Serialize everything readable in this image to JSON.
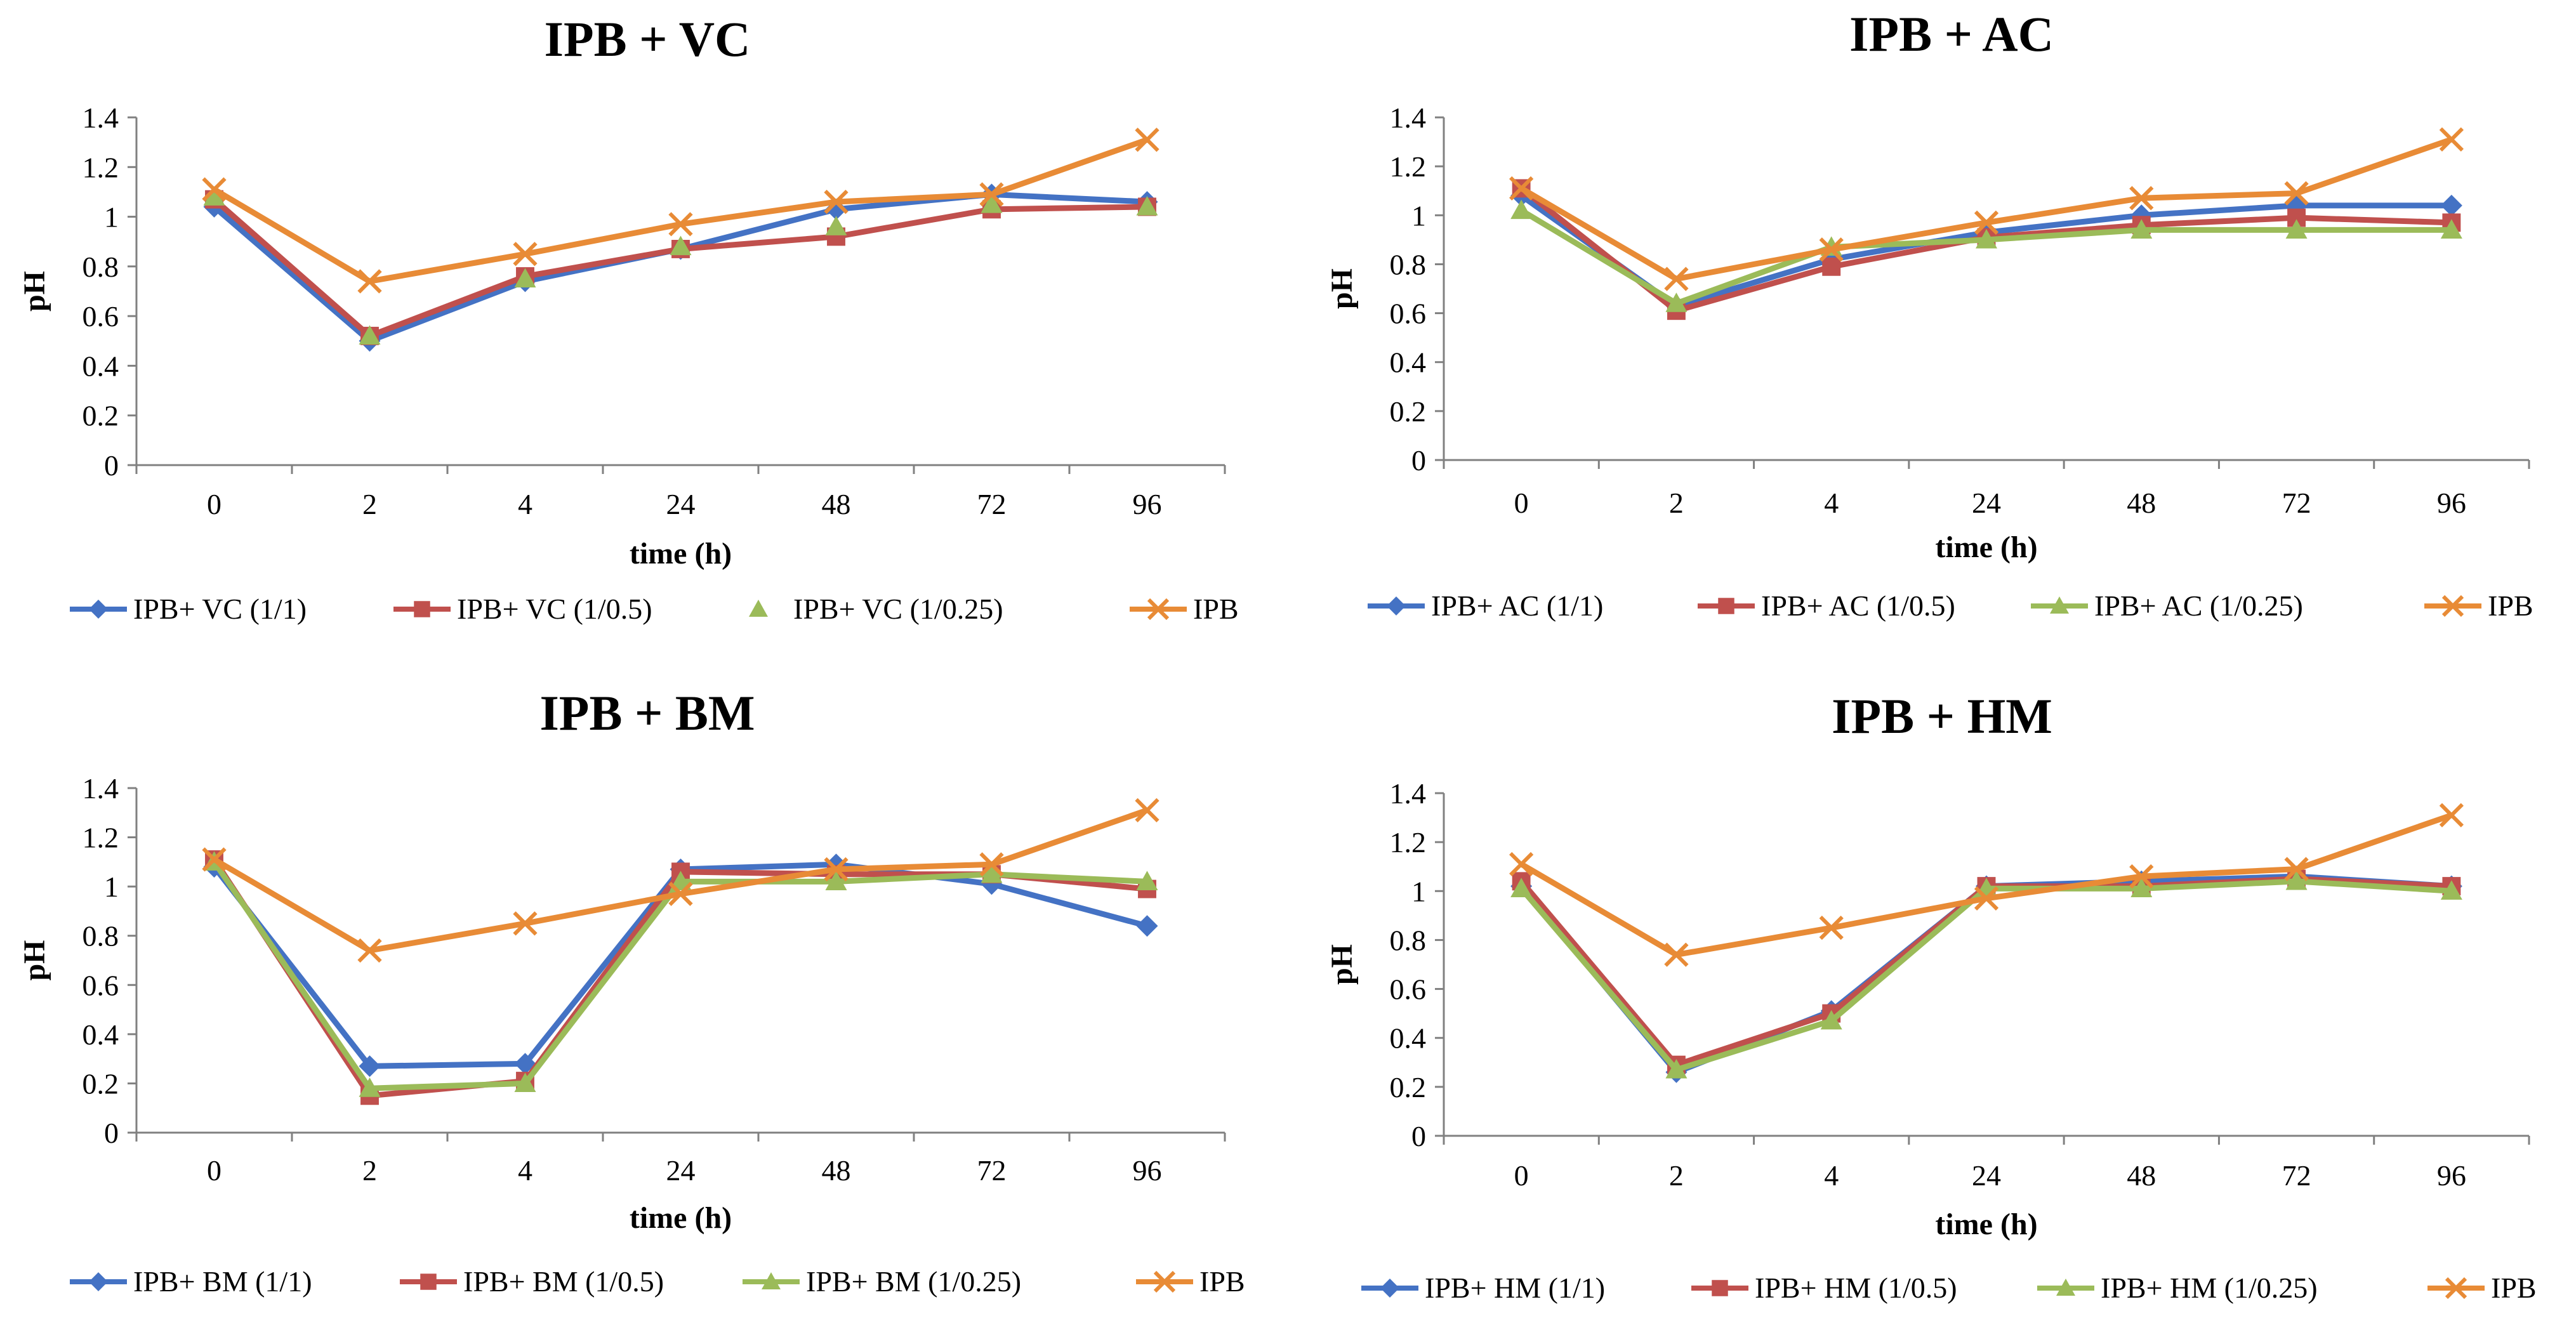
{
  "chart_data": [
    {
      "type": "line",
      "title": "IPB + VC",
      "xlabel": "time (h)",
      "ylabel": "pH",
      "categories": [
        "0",
        "2",
        "4",
        "24",
        "48",
        "72",
        "96"
      ],
      "ylim": [
        0,
        1.4
      ],
      "yticks": [
        "0",
        "0.2",
        "0.4",
        "0.6",
        "0.8",
        "1",
        "1.2",
        "1.4"
      ],
      "series": [
        {
          "name": "IPB+ VC (1/1)",
          "marker": "diamond",
          "line": true,
          "values": [
            1.04,
            0.5,
            0.74,
            0.87,
            1.03,
            1.09,
            1.06
          ]
        },
        {
          "name": "IPB+ VC (1/0.5)",
          "marker": "square",
          "line": true,
          "values": [
            1.07,
            0.52,
            0.76,
            0.87,
            0.92,
            1.03,
            1.04
          ]
        },
        {
          "name": "IPB+ VC (1/0.25)",
          "marker": "triangle",
          "line": false,
          "values": [
            1.08,
            0.52,
            0.75,
            0.88,
            0.96,
            1.05,
            1.04
          ]
        },
        {
          "name": "IPB",
          "marker": "x",
          "line": true,
          "values": [
            1.11,
            0.74,
            0.85,
            0.97,
            1.06,
            1.09,
            1.31
          ]
        }
      ]
    },
    {
      "type": "line",
      "title": "IPB + AC",
      "xlabel": "time (h)",
      "ylabel": "pH",
      "categories": [
        "0",
        "2",
        "4",
        "24",
        "48",
        "72",
        "96"
      ],
      "ylim": [
        0,
        1.4
      ],
      "yticks": [
        "0",
        "0.2",
        "0.4",
        "0.6",
        "0.8",
        "1",
        "1.2",
        "1.4"
      ],
      "series": [
        {
          "name": "IPB+ AC (1/1)",
          "marker": "diamond",
          "line": true,
          "values": [
            1.08,
            0.63,
            0.82,
            0.93,
            1.0,
            1.04,
            1.04
          ]
        },
        {
          "name": "IPB+ AC (1/0.5)",
          "marker": "square",
          "line": true,
          "values": [
            1.11,
            0.61,
            0.79,
            0.91,
            0.96,
            0.99,
            0.97
          ]
        },
        {
          "name": "IPB+ AC (1/0.25)",
          "marker": "triangle",
          "line": true,
          "values": [
            1.02,
            0.64,
            0.87,
            0.9,
            0.94,
            0.94,
            0.94
          ]
        },
        {
          "name": "IPB",
          "marker": "x",
          "line": true,
          "values": [
            1.11,
            0.74,
            0.86,
            0.97,
            1.07,
            1.09,
            1.31
          ]
        }
      ]
    },
    {
      "type": "line",
      "title": "IPB + BM",
      "xlabel": "time (h)",
      "ylabel": "pH",
      "categories": [
        "0",
        "2",
        "4",
        "24",
        "48",
        "72",
        "96"
      ],
      "ylim": [
        0,
        1.4
      ],
      "yticks": [
        "0",
        "0.2",
        "0.4",
        "0.6",
        "0.8",
        "1",
        "1.2",
        "1.4"
      ],
      "series": [
        {
          "name": "IPB+ BM (1/1)",
          "marker": "diamond",
          "line": true,
          "values": [
            1.08,
            0.27,
            0.28,
            1.07,
            1.09,
            1.01,
            0.84
          ]
        },
        {
          "name": "IPB+ BM (1/0.5)",
          "marker": "square",
          "line": true,
          "values": [
            1.11,
            0.15,
            0.21,
            1.06,
            1.05,
            1.05,
            0.99
          ]
        },
        {
          "name": "IPB+ BM (1/0.25)",
          "marker": "triangle",
          "line": true,
          "values": [
            1.1,
            0.18,
            0.2,
            1.02,
            1.02,
            1.05,
            1.02
          ]
        },
        {
          "name": "IPB",
          "marker": "x",
          "line": true,
          "values": [
            1.11,
            0.74,
            0.85,
            0.97,
            1.07,
            1.09,
            1.31
          ]
        }
      ]
    },
    {
      "type": "line",
      "title": "IPB + HM",
      "xlabel": "time (h)",
      "ylabel": "pH",
      "categories": [
        "0",
        "2",
        "4",
        "24",
        "48",
        "72",
        "96"
      ],
      "ylim": [
        0,
        1.4
      ],
      "yticks": [
        "0",
        "0.2",
        "0.4",
        "0.6",
        "0.8",
        "1",
        "1.2",
        "1.4"
      ],
      "series": [
        {
          "name": "IPB+ HM (1/1)",
          "marker": "diamond",
          "line": true,
          "values": [
            1.02,
            0.26,
            0.51,
            1.02,
            1.04,
            1.06,
            1.02
          ]
        },
        {
          "name": "IPB+ HM (1/0.5)",
          "marker": "square",
          "line": true,
          "values": [
            1.04,
            0.29,
            0.5,
            1.02,
            1.02,
            1.05,
            1.02
          ]
        },
        {
          "name": "IPB+ HM (1/0.25)",
          "marker": "triangle",
          "line": true,
          "values": [
            1.01,
            0.27,
            0.47,
            1.01,
            1.01,
            1.04,
            1.0
          ]
        },
        {
          "name": "IPB",
          "marker": "x",
          "line": true,
          "values": [
            1.11,
            0.74,
            0.85,
            0.97,
            1.06,
            1.09,
            1.31
          ]
        }
      ]
    }
  ],
  "colors": {
    "series": [
      "#4472C4",
      "#C0504D",
      "#9BBB59",
      "#E88B36"
    ],
    "axis": "#808080"
  }
}
